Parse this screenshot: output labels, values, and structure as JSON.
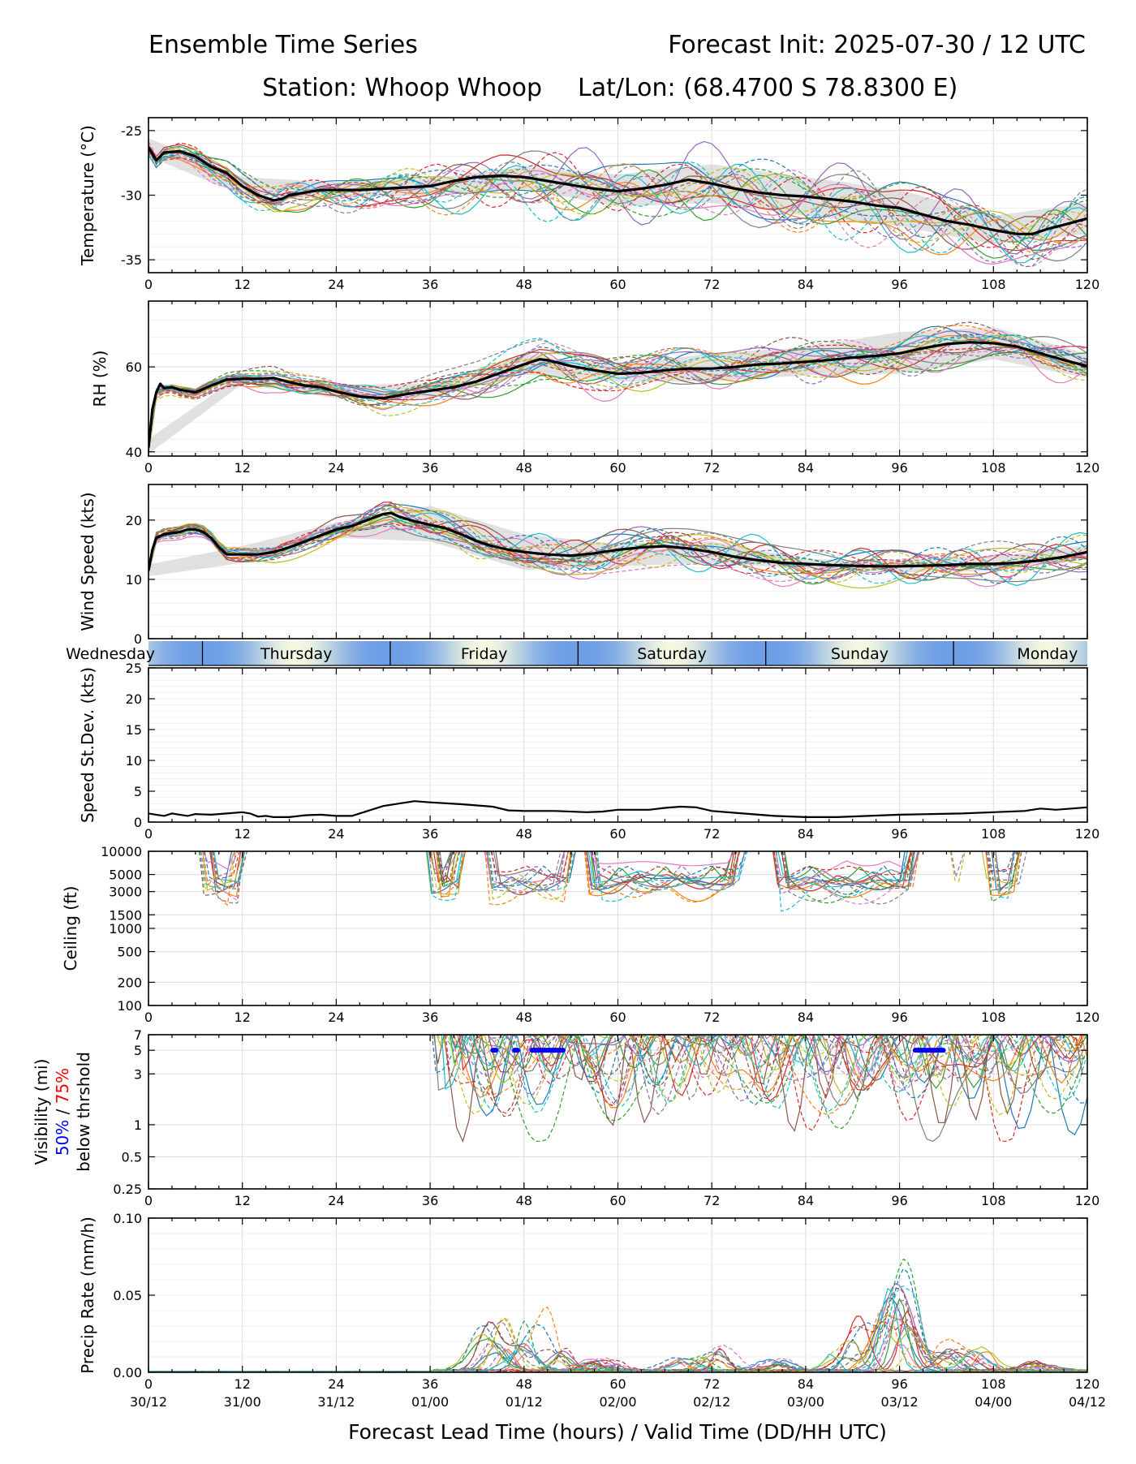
{
  "header": {
    "title_left": "Ensemble Time Series",
    "title_right": "Forecast Init: 2025-07-30 / 12 UTC",
    "station": "Station: Whoop Whoop",
    "latlon": "Lat/Lon: (68.4700 S 78.8300 E)"
  },
  "x_axis": {
    "ticks": [
      0,
      12,
      24,
      36,
      48,
      60,
      72,
      84,
      96,
      108,
      120
    ],
    "valid_times": [
      "30/12",
      "31/00",
      "31/12",
      "01/00",
      "01/12",
      "02/00",
      "02/12",
      "03/00",
      "03/12",
      "04/00",
      "04/12"
    ],
    "title": "Forecast Lead Time (hours) / Valid Time (DD/HH UTC)"
  },
  "day_band": {
    "days": [
      "Wednesday",
      "Thursday",
      "Friday",
      "Saturday",
      "Sunday",
      "Monday"
    ],
    "boundaries_h": [
      6.9,
      30.9,
      54.9,
      78.9,
      102.9
    ],
    "colors": {
      "day": "#f5f8e0",
      "night": "#6e9fe6"
    }
  },
  "colors": {
    "mean": "#000000",
    "spread_fill": "#c8c8c8",
    "grid": "#dcdcdc",
    "vis_50": "#0000ff",
    "vis_75": "#ff0000",
    "members": [
      "#1f77b4",
      "#ff7f0e",
      "#2ca02c",
      "#d62728",
      "#9467bd",
      "#8c564b",
      "#e377c2",
      "#7f7f7f",
      "#bcbd22",
      "#17becf"
    ]
  },
  "chart_data": [
    {
      "type": "line",
      "id": "temperature",
      "ylabel": "Temperature (°C)",
      "ylim": [
        -36,
        -24
      ],
      "yticks": [
        -35,
        -30,
        -25
      ],
      "xlim": [
        0,
        120
      ],
      "grid": true,
      "members": 20,
      "series": [
        {
          "name": "mean",
          "x": [
            0,
            1,
            2,
            4,
            6,
            8,
            10,
            12,
            14,
            16,
            17,
            18,
            20,
            22,
            24,
            27,
            30,
            33,
            36,
            39,
            42,
            45,
            48,
            51,
            54,
            57,
            60,
            63,
            66,
            69,
            72,
            75,
            78,
            81,
            84,
            87,
            90,
            93,
            96,
            99,
            102,
            105,
            108,
            111,
            113,
            115,
            117,
            120
          ],
          "values": [
            -26.3,
            -27.3,
            -26.7,
            -26.6,
            -27.0,
            -27.8,
            -28.3,
            -29.3,
            -30.0,
            -30.4,
            -30.3,
            -30.0,
            -29.8,
            -29.6,
            -29.6,
            -29.6,
            -29.5,
            -29.4,
            -29.3,
            -28.9,
            -28.6,
            -28.5,
            -28.6,
            -28.9,
            -29.2,
            -29.5,
            -29.7,
            -29.5,
            -29.2,
            -28.8,
            -29.1,
            -29.5,
            -29.8,
            -30.0,
            -30.1,
            -30.3,
            -30.5,
            -30.8,
            -31.0,
            -31.5,
            -32.0,
            -32.3,
            -32.7,
            -33.0,
            -33.0,
            -32.6,
            -32.3,
            -31.8
          ]
        },
        {
          "name": "spread_upper",
          "x": [
            0,
            12,
            24,
            36,
            48,
            60,
            72,
            84,
            96,
            108,
            120
          ],
          "values": [
            -25.6,
            -28.6,
            -29.0,
            -28.7,
            -27.8,
            -28.4,
            -27.6,
            -28.6,
            -29.6,
            -31.6,
            -30.6
          ]
        },
        {
          "name": "spread_lower",
          "x": [
            0,
            12,
            24,
            36,
            48,
            60,
            72,
            84,
            96,
            108,
            120
          ],
          "values": [
            -27.0,
            -30.0,
            -30.2,
            -30.0,
            -29.5,
            -30.9,
            -30.6,
            -31.6,
            -32.4,
            -33.8,
            -33.0
          ]
        }
      ]
    },
    {
      "type": "line",
      "id": "rh",
      "ylabel": "RH (%)",
      "ylim": [
        39,
        75.5
      ],
      "yticks": [
        40,
        60
      ],
      "xlim": [
        0,
        120
      ],
      "grid": true,
      "members": 20,
      "series": [
        {
          "name": "mean",
          "x": [
            0,
            0.5,
            1,
            1.5,
            2,
            3,
            4,
            6,
            8,
            10,
            12,
            14,
            16,
            18,
            20,
            22,
            24,
            27,
            30,
            33,
            36,
            39,
            42,
            45,
            48,
            50,
            51,
            54,
            57,
            60,
            63,
            66,
            69,
            72,
            75,
            78,
            81,
            84,
            87,
            90,
            93,
            96,
            99,
            102,
            105,
            108,
            111,
            114,
            117,
            120
          ],
          "values": [
            41,
            50,
            54,
            56,
            55,
            55.2,
            54.6,
            54,
            55.6,
            57.0,
            57.2,
            57.2,
            57.4,
            56.4,
            55.6,
            55.2,
            54.2,
            53.0,
            52.6,
            53.6,
            54.4,
            55.2,
            56.6,
            58.6,
            60.6,
            61.8,
            61.6,
            60.2,
            59.2,
            58.4,
            58.6,
            59.2,
            59.6,
            59.6,
            60.0,
            60.6,
            60.8,
            61.2,
            61.6,
            62.2,
            62.6,
            63.2,
            64.4,
            65.4,
            65.8,
            65.6,
            64.8,
            63.2,
            61.6,
            60.2
          ]
        },
        {
          "name": "spread_upper",
          "x": [
            0,
            12,
            24,
            36,
            48,
            60,
            72,
            84,
            96,
            108,
            120
          ],
          "values": [
            43,
            58.4,
            55.6,
            56.2,
            63.0,
            60.4,
            63.2,
            64.6,
            68.2,
            69.4,
            63.0
          ]
        },
        {
          "name": "spread_lower",
          "x": [
            0,
            12,
            24,
            36,
            48,
            60,
            72,
            84,
            96,
            108,
            120
          ],
          "values": [
            39.5,
            56.0,
            52.6,
            52.8,
            58.2,
            56.6,
            56.6,
            58.0,
            58.4,
            61.8,
            57.4
          ]
        }
      ]
    },
    {
      "type": "line",
      "id": "wind_speed",
      "ylabel": "Wind Speed (kts)",
      "ylim": [
        0,
        26
      ],
      "yticks": [
        0,
        10,
        20
      ],
      "xlim": [
        0,
        120
      ],
      "grid": true,
      "members": 20,
      "series": [
        {
          "name": "mean",
          "x": [
            0,
            0.5,
            1,
            2,
            3,
            4,
            5,
            6,
            7,
            8,
            9,
            10,
            12,
            14,
            16,
            18,
            20,
            22,
            24,
            26,
            28,
            30,
            31,
            32,
            34,
            36,
            38,
            40,
            42,
            44,
            46,
            48,
            51,
            54,
            57,
            60,
            63,
            66,
            69,
            72,
            75,
            78,
            81,
            84,
            87,
            90,
            93,
            96,
            99,
            102,
            105,
            108,
            111,
            114,
            117,
            120
          ],
          "values": [
            11.5,
            15.0,
            17.0,
            17.6,
            17.8,
            18.0,
            18.4,
            18.4,
            18.0,
            17.0,
            15.4,
            14.2,
            14.2,
            14.2,
            14.6,
            15.4,
            16.4,
            17.4,
            18.4,
            19.0,
            20.0,
            21.0,
            21.2,
            20.6,
            19.8,
            19.2,
            18.6,
            17.6,
            16.4,
            15.6,
            15.0,
            14.6,
            14.2,
            14.0,
            14.4,
            15.0,
            15.4,
            15.6,
            15.2,
            14.6,
            13.8,
            13.2,
            12.8,
            12.6,
            12.4,
            12.3,
            12.2,
            12.2,
            12.3,
            12.4,
            12.6,
            12.6,
            12.8,
            13.2,
            13.8,
            14.6
          ]
        },
        {
          "name": "spread_upper",
          "x": [
            0,
            12,
            24,
            36,
            48,
            60,
            72,
            84,
            96,
            108,
            120
          ],
          "values": [
            12.5,
            15.6,
            19.6,
            22.4,
            17.6,
            16.0,
            16.4,
            13.4,
            13.2,
            13.8,
            15.8
          ]
        },
        {
          "name": "spread_lower",
          "x": [
            0,
            12,
            24,
            36,
            48,
            60,
            72,
            84,
            96,
            108,
            120
          ],
          "values": [
            10.5,
            12.8,
            17.0,
            16.4,
            11.6,
            12.2,
            12.8,
            11.8,
            11.2,
            11.4,
            13.4
          ]
        }
      ]
    },
    {
      "type": "line",
      "id": "speed_stdev",
      "ylabel": "Speed St.Dev. (kts)",
      "ylim": [
        0,
        25
      ],
      "yticks": [
        0,
        5,
        10,
        15,
        20,
        25
      ],
      "xlim": [
        0,
        120
      ],
      "grid": true,
      "series": [
        {
          "name": "stdev",
          "x": [
            0,
            1,
            2,
            3,
            4,
            5,
            6,
            8,
            10,
            12,
            13,
            14,
            15,
            16,
            18,
            20,
            22,
            24,
            26,
            28,
            30,
            32,
            34,
            36,
            40,
            44,
            46,
            48,
            52,
            56,
            58,
            60,
            64,
            66,
            68,
            70,
            72,
            76,
            80,
            84,
            88,
            92,
            96,
            100,
            104,
            108,
            112,
            114,
            116,
            118,
            120
          ],
          "values": [
            1.4,
            1.2,
            1.0,
            1.4,
            1.2,
            1.0,
            1.3,
            1.2,
            1.4,
            1.6,
            1.4,
            0.9,
            1.0,
            0.8,
            0.8,
            1.1,
            1.2,
            1.0,
            1.0,
            1.8,
            2.6,
            3.0,
            3.4,
            3.2,
            2.9,
            2.5,
            1.9,
            1.8,
            1.8,
            1.6,
            1.7,
            2.0,
            2.0,
            2.3,
            2.5,
            2.4,
            1.8,
            1.4,
            1.0,
            0.8,
            0.8,
            1.0,
            1.2,
            1.3,
            1.4,
            1.6,
            1.8,
            2.2,
            2.0,
            2.2,
            2.4
          ]
        }
      ]
    },
    {
      "type": "line",
      "id": "ceiling",
      "ylabel": "Ceiling (ft)",
      "yscale": "log",
      "ylim": [
        100,
        10000
      ],
      "yticks": [
        100,
        200,
        500,
        1000,
        1500,
        3000,
        5000,
        10000
      ],
      "xlim": [
        0,
        120
      ],
      "grid": true,
      "members": 20,
      "active_hours": [
        [
          7,
          12
        ],
        [
          36,
          40
        ],
        [
          43,
          54
        ],
        [
          56,
          76
        ],
        [
          80,
          98
        ],
        [
          103,
          104
        ],
        [
          107,
          112
        ]
      ]
    },
    {
      "type": "line",
      "id": "visibility",
      "ylabel": "Visibility (mi)",
      "ylabel_2a": "50%",
      "ylabel_2b": " / ",
      "ylabel_2c": "75%",
      "ylabel_3": "below thrshold",
      "yscale": "log",
      "ylim": [
        0.25,
        7
      ],
      "yticks": [
        0.25,
        0.5,
        1,
        3,
        5,
        7
      ],
      "xlim": [
        0,
        120
      ],
      "grid": true,
      "members": 20,
      "active_hours": [
        36,
        120
      ],
      "below_threshold_50": [
        [
          44,
          44.4
        ],
        [
          46.8,
          47.2
        ],
        [
          49,
          53
        ],
        [
          98,
          101.6
        ]
      ]
    },
    {
      "type": "line",
      "id": "precip",
      "ylabel": "Precip Rate (mm/h)",
      "ylim": [
        0,
        0.1
      ],
      "yticks": [
        0,
        0.05,
        0.1
      ],
      "ytick_labels": [
        "0.00",
        "0.05",
        "0.10"
      ],
      "xlim": [
        0,
        120
      ],
      "grid": true,
      "members": 20,
      "peaks": [
        [
          44,
          0.03
        ],
        [
          46,
          0.016
        ],
        [
          49,
          0.032
        ],
        [
          52,
          0.014
        ],
        [
          58,
          0.008
        ],
        [
          68,
          0.012
        ],
        [
          72,
          0.016
        ],
        [
          80,
          0.01
        ],
        [
          88,
          0.016
        ],
        [
          91,
          0.03
        ],
        [
          95,
          0.052
        ],
        [
          97,
          0.04
        ],
        [
          102,
          0.02
        ],
        [
          106,
          0.016
        ],
        [
          114,
          0.006
        ]
      ]
    }
  ]
}
